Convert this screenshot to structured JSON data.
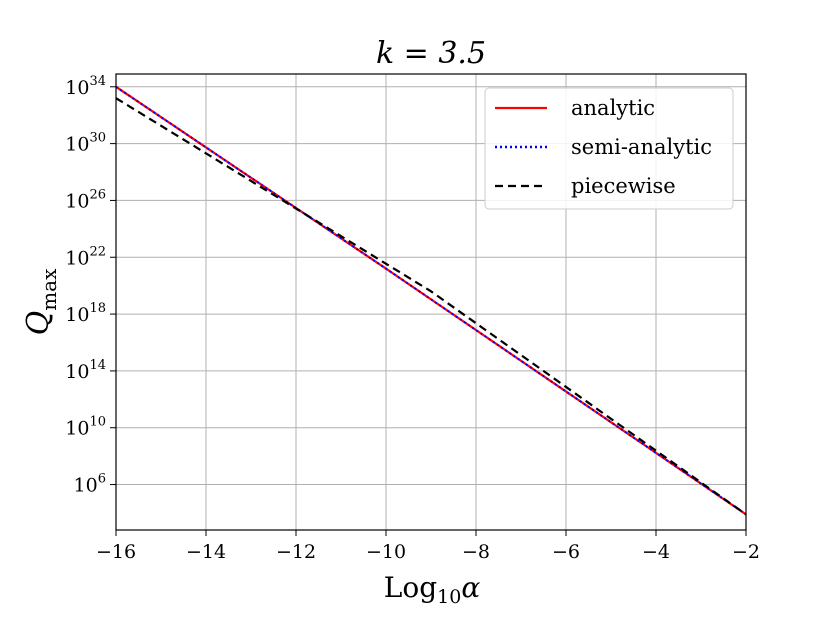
{
  "chart_data": {
    "type": "line",
    "title": "k = 3.5",
    "xlabel": "Log",
    "xlabel_sub": "10",
    "xlabel_symbol": "α",
    "ylabel": "Q",
    "ylabel_sub": "max",
    "xlim": [
      -16,
      -2
    ],
    "ylim_log10": [
      2.8,
      34.9
    ],
    "yscale": "log",
    "grid": true,
    "legend_position": "top-right",
    "x_ticks": [
      -16,
      -14,
      -12,
      -10,
      -8,
      -6,
      -4,
      -2
    ],
    "x_tick_labels": [
      "−16",
      "−14",
      "−12",
      "−10",
      "−8",
      "−6",
      "−4",
      "−2"
    ],
    "y_ticks_log10": [
      6,
      10,
      14,
      18,
      22,
      26,
      30,
      34
    ],
    "y_tick_labels": [
      {
        "base": "10",
        "exp": "6"
      },
      {
        "base": "10",
        "exp": "10"
      },
      {
        "base": "10",
        "exp": "14"
      },
      {
        "base": "10",
        "exp": "18"
      },
      {
        "base": "10",
        "exp": "22"
      },
      {
        "base": "10",
        "exp": "26"
      },
      {
        "base": "10",
        "exp": "30"
      },
      {
        "base": "10",
        "exp": "34"
      }
    ],
    "series": [
      {
        "name": "analytic",
        "color": "#ff0000",
        "style": "solid",
        "x": [
          -16,
          -10,
          -2
        ],
        "y_log10": [
          34.0,
          21.2,
          3.9
        ]
      },
      {
        "name": "semi-analytic",
        "color": "#0000ff",
        "style": "dotted",
        "x": [
          -16,
          -10,
          -2
        ],
        "y_log10": [
          34.0,
          21.2,
          3.9
        ]
      },
      {
        "name": "piecewise",
        "color": "#000000",
        "style": "dashed",
        "x": [
          -16,
          -9,
          -2
        ],
        "y_log10": [
          33.2,
          19.6,
          3.9
        ]
      }
    ]
  }
}
